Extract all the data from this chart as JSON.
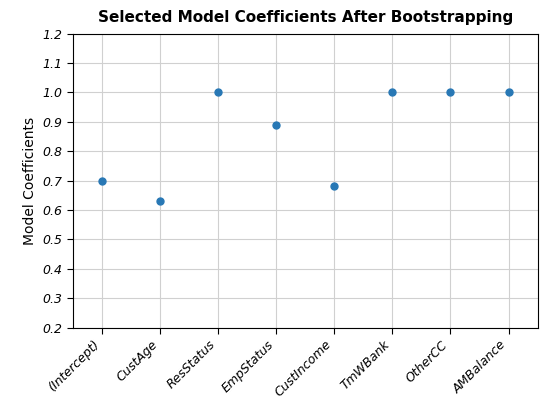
{
  "title": "Selected Model Coefficients After Bootstrapping",
  "ylabel": "Model Coefficients",
  "categories": [
    "(Intercept)",
    "CustAge",
    "ResStatus",
    "EmpStatus",
    "CustIncome",
    "TmWBank",
    "OtherCC",
    "AMBalance"
  ],
  "values": [
    0.7,
    0.63,
    1.0,
    0.89,
    0.68,
    1.0,
    1.0,
    1.0
  ],
  "ylim": [
    0.2,
    1.2
  ],
  "yticks": [
    0.2,
    0.3,
    0.4,
    0.5,
    0.6,
    0.7,
    0.8,
    0.9,
    1.0,
    1.1,
    1.2
  ],
  "marker_color": "#2878b5",
  "marker": "o",
  "marker_size": 5,
  "grid_color": "#d0d0d0",
  "title_fontsize": 11,
  "label_fontsize": 10,
  "tick_fontsize": 9,
  "figsize": [
    5.6,
    4.2
  ],
  "dpi": 100
}
